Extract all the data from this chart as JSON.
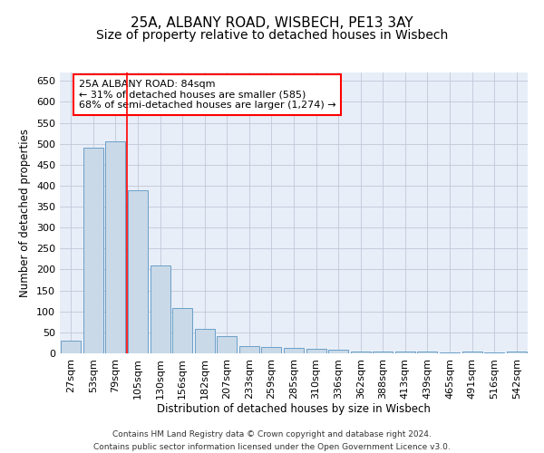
{
  "title": "25A, ALBANY ROAD, WISBECH, PE13 3AY",
  "subtitle": "Size of property relative to detached houses in Wisbech",
  "xlabel": "Distribution of detached houses by size in Wisbech",
  "ylabel": "Number of detached properties",
  "categories": [
    "27sqm",
    "53sqm",
    "79sqm",
    "105sqm",
    "130sqm",
    "156sqm",
    "182sqm",
    "207sqm",
    "233sqm",
    "259sqm",
    "285sqm",
    "310sqm",
    "336sqm",
    "362sqm",
    "388sqm",
    "413sqm",
    "439sqm",
    "465sqm",
    "491sqm",
    "516sqm",
    "542sqm"
  ],
  "values": [
    30,
    490,
    505,
    390,
    210,
    107,
    58,
    40,
    18,
    15,
    12,
    10,
    8,
    5,
    5,
    5,
    5,
    2,
    5,
    2,
    5
  ],
  "bar_color": "#c9d9e8",
  "bar_edge_color": "#6b9fc8",
  "redline_x": 2.5,
  "annotation_text": "25A ALBANY ROAD: 84sqm\n← 31% of detached houses are smaller (585)\n68% of semi-detached houses are larger (1,274) →",
  "annotation_box_color": "white",
  "annotation_box_edge": "red",
  "footer_line1": "Contains HM Land Registry data © Crown copyright and database right 2024.",
  "footer_line2": "Contains public sector information licensed under the Open Government Licence v3.0.",
  "ylim": [
    0,
    670
  ],
  "yticks": [
    0,
    50,
    100,
    150,
    200,
    250,
    300,
    350,
    400,
    450,
    500,
    550,
    600,
    650
  ],
  "background_color": "#e8eef8",
  "grid_color": "#c0c8d8",
  "title_fontsize": 11,
  "subtitle_fontsize": 10,
  "label_fontsize": 8.5,
  "tick_fontsize": 8,
  "annot_fontsize": 8
}
